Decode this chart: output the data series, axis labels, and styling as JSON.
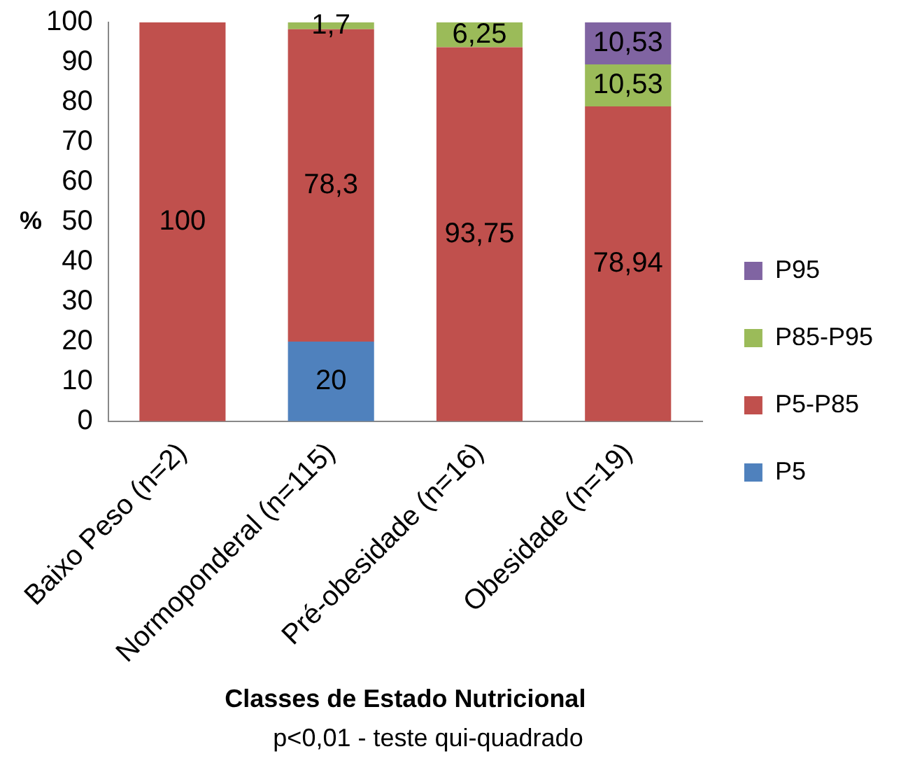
{
  "chart_data": {
    "type": "bar",
    "stacked": true,
    "ylabel": "%",
    "xlabel": "Classes de Estado Nutricional",
    "annotations": [
      "p<0,01 - teste qui-quadrado"
    ],
    "categories": [
      "Baixo Peso (n=2)",
      "Normoponderal (n=115)",
      "Pré-obesidade (n=16)",
      "Obesidade (n=19)"
    ],
    "series": [
      {
        "name": "P5",
        "color": "#4f81bd",
        "values": [
          0,
          20,
          0,
          0
        ],
        "value_labels": [
          null,
          "20",
          null,
          null
        ]
      },
      {
        "name": "P5-P85",
        "color": "#c0504d",
        "values": [
          100,
          78.3,
          93.75,
          78.94
        ],
        "value_labels": [
          "100",
          "78,3",
          "93,75",
          "78,94"
        ]
      },
      {
        "name": "P85-P95",
        "color": "#9bbb59",
        "values": [
          0,
          1.7,
          6.25,
          10.53
        ],
        "value_labels": [
          null,
          "1,7",
          "6,25",
          "10,53"
        ]
      },
      {
        "name": "P95",
        "color": "#8064a2",
        "values": [
          0,
          0,
          0,
          10.53
        ],
        "value_labels": [
          null,
          null,
          null,
          "10,53"
        ]
      }
    ],
    "ylim": [
      0,
      100
    ],
    "yticks": [
      0,
      10,
      20,
      30,
      40,
      50,
      60,
      70,
      80,
      90,
      100
    ],
    "grid": false,
    "legend": "right"
  }
}
